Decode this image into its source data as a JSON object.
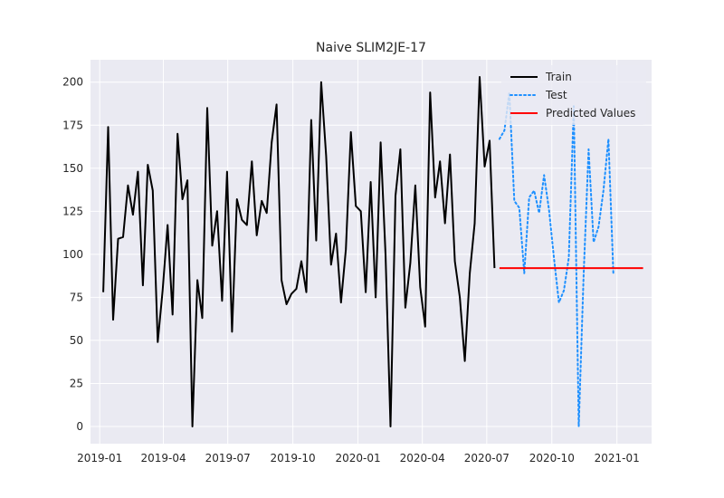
{
  "chart_data": {
    "type": "line",
    "title": "Naive SLIM2JE-17",
    "xlabel": "",
    "ylabel": "",
    "x_axis_type": "date",
    "xlim": [
      "2018-12-19",
      "2021-02-19"
    ],
    "ylim": [
      -10,
      213
    ],
    "yticks": [
      0,
      25,
      50,
      75,
      100,
      125,
      150,
      175,
      200
    ],
    "xticks": [
      "2019-01",
      "2019-04",
      "2019-07",
      "2019-10",
      "2020-01",
      "2020-04",
      "2020-07",
      "2020-10",
      "2021-01"
    ],
    "grid": true,
    "legend_position": "top-right",
    "colors": {
      "background": "#eaeaf2",
      "grid": "#ffffff",
      "train": "#000000",
      "test": "#1e90ff",
      "predicted": "#ff0000"
    },
    "series": [
      {
        "name": "Train",
        "style": "solid",
        "points": [
          [
            "2019-01-06",
            78
          ],
          [
            "2019-01-13",
            174
          ],
          [
            "2019-01-20",
            62
          ],
          [
            "2019-01-27",
            109
          ],
          [
            "2019-02-03",
            110
          ],
          [
            "2019-02-10",
            140
          ],
          [
            "2019-02-17",
            123
          ],
          [
            "2019-02-24",
            148
          ],
          [
            "2019-03-03",
            82
          ],
          [
            "2019-03-10",
            152
          ],
          [
            "2019-03-17",
            137
          ],
          [
            "2019-03-24",
            49
          ],
          [
            "2019-03-31",
            79
          ],
          [
            "2019-04-07",
            117
          ],
          [
            "2019-04-14",
            65
          ],
          [
            "2019-04-21",
            170
          ],
          [
            "2019-04-28",
            132
          ],
          [
            "2019-05-05",
            143
          ],
          [
            "2019-05-12",
            0
          ],
          [
            "2019-05-19",
            85
          ],
          [
            "2019-05-26",
            63
          ],
          [
            "2019-06-02",
            185
          ],
          [
            "2019-06-09",
            105
          ],
          [
            "2019-06-16",
            125
          ],
          [
            "2019-06-23",
            73
          ],
          [
            "2019-06-30",
            148
          ],
          [
            "2019-07-07",
            55
          ],
          [
            "2019-07-14",
            132
          ],
          [
            "2019-07-21",
            120
          ],
          [
            "2019-07-28",
            117
          ],
          [
            "2019-08-04",
            154
          ],
          [
            "2019-08-11",
            111
          ],
          [
            "2019-08-18",
            131
          ],
          [
            "2019-08-25",
            124
          ],
          [
            "2019-09-01",
            165
          ],
          [
            "2019-09-08",
            187
          ],
          [
            "2019-09-15",
            85
          ],
          [
            "2019-09-22",
            71
          ],
          [
            "2019-09-29",
            77
          ],
          [
            "2019-10-06",
            80
          ],
          [
            "2019-10-13",
            96
          ],
          [
            "2019-10-20",
            78
          ],
          [
            "2019-10-27",
            178
          ],
          [
            "2019-11-03",
            108
          ],
          [
            "2019-11-10",
            200
          ],
          [
            "2019-11-17",
            157
          ],
          [
            "2019-11-24",
            94
          ],
          [
            "2019-12-01",
            112
          ],
          [
            "2019-12-08",
            72
          ],
          [
            "2019-12-15",
            103
          ],
          [
            "2019-12-22",
            171
          ],
          [
            "2019-12-29",
            128
          ],
          [
            "2020-01-05",
            125
          ],
          [
            "2020-01-12",
            78
          ],
          [
            "2020-01-19",
            142
          ],
          [
            "2020-01-26",
            75
          ],
          [
            "2020-02-02",
            165
          ],
          [
            "2020-02-09",
            100
          ],
          [
            "2020-02-16",
            0
          ],
          [
            "2020-02-23",
            134
          ],
          [
            "2020-03-01",
            161
          ],
          [
            "2020-03-08",
            69
          ],
          [
            "2020-03-15",
            95
          ],
          [
            "2020-03-22",
            140
          ],
          [
            "2020-03-29",
            81
          ],
          [
            "2020-04-05",
            58
          ],
          [
            "2020-04-12",
            194
          ],
          [
            "2020-04-19",
            133
          ],
          [
            "2020-04-26",
            154
          ],
          [
            "2020-05-03",
            118
          ],
          [
            "2020-05-10",
            158
          ],
          [
            "2020-05-17",
            96
          ],
          [
            "2020-05-24",
            75
          ],
          [
            "2020-05-31",
            38
          ],
          [
            "2020-06-07",
            89
          ],
          [
            "2020-06-14",
            118
          ],
          [
            "2020-06-21",
            203
          ],
          [
            "2020-06-28",
            151
          ],
          [
            "2020-07-05",
            166
          ],
          [
            "2020-07-12",
            92
          ]
        ]
      },
      {
        "name": "Test",
        "style": "dotted",
        "points": [
          [
            "2020-07-19",
            167
          ],
          [
            "2020-07-26",
            172
          ],
          [
            "2020-08-02",
            194
          ],
          [
            "2020-08-09",
            131
          ],
          [
            "2020-08-16",
            127
          ],
          [
            "2020-08-23",
            89
          ],
          [
            "2020-08-30",
            133
          ],
          [
            "2020-09-06",
            137
          ],
          [
            "2020-09-13",
            124
          ],
          [
            "2020-09-20",
            146
          ],
          [
            "2020-09-27",
            126
          ],
          [
            "2020-10-04",
            98
          ],
          [
            "2020-10-11",
            72
          ],
          [
            "2020-10-18",
            79
          ],
          [
            "2020-10-25",
            98
          ],
          [
            "2020-11-01",
            186
          ],
          [
            "2020-11-08",
            0
          ],
          [
            "2020-11-15",
            88
          ],
          [
            "2020-11-22",
            161
          ],
          [
            "2020-11-29",
            107
          ],
          [
            "2020-12-06",
            116
          ],
          [
            "2020-12-13",
            137
          ],
          [
            "2020-12-20",
            167
          ],
          [
            "2020-12-27",
            88
          ]
        ]
      },
      {
        "name": "Predicted Values",
        "style": "solid",
        "points": [
          [
            "2020-07-19",
            92
          ],
          [
            "2021-02-07",
            92
          ]
        ]
      }
    ]
  }
}
